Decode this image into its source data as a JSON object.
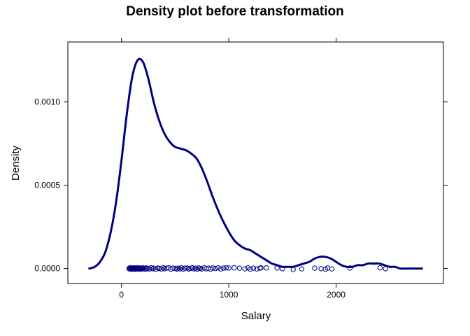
{
  "chart_data": {
    "type": "density",
    "title": "Density plot before transformation",
    "xlabel": "Salary",
    "ylabel": "Density",
    "xlim": [
      -500,
      3000
    ],
    "ylim": [
      -9e-05,
      0.00136
    ],
    "grid": false,
    "x_ticks": [
      {
        "value": 0,
        "label": "0"
      },
      {
        "value": 1000,
        "label": "1000"
      },
      {
        "value": 2000,
        "label": "2000"
      }
    ],
    "y_ticks": [
      {
        "value": 0,
        "label": "0.0000"
      },
      {
        "value": 0.0005,
        "label": "0.0005"
      },
      {
        "value": 0.001,
        "label": "0.0010"
      }
    ],
    "line_color": "#000080",
    "point_color": "#000080",
    "density_curve": {
      "x": [
        -300,
        -250,
        -200,
        -150,
        -100,
        -50,
        0,
        50,
        100,
        150,
        200,
        250,
        300,
        350,
        400,
        450,
        500,
        550,
        600,
        650,
        700,
        750,
        800,
        850,
        900,
        950,
        1000,
        1050,
        1100,
        1150,
        1200,
        1250,
        1300,
        1350,
        1400,
        1450,
        1500,
        1550,
        1600,
        1650,
        1700,
        1750,
        1800,
        1850,
        1900,
        1950,
        2000,
        2050,
        2100,
        2150,
        2200,
        2250,
        2300,
        2350,
        2400,
        2450,
        2500,
        2550,
        2600,
        2700,
        2800
      ],
      "y": [
        0.0,
        1e-05,
        4e-05,
        0.0001,
        0.00022,
        0.0004,
        0.00065,
        0.00093,
        0.00115,
        0.00125,
        0.00124,
        0.00114,
        0.001,
        0.00089,
        0.00081,
        0.00076,
        0.00073,
        0.00072,
        0.00071,
        0.00069,
        0.00066,
        0.0006,
        0.00052,
        0.00043,
        0.00035,
        0.00028,
        0.00022,
        0.00017,
        0.00014,
        0.00012,
        0.00011,
        9e-05,
        7e-05,
        5e-05,
        3e-05,
        2e-05,
        1e-05,
        1e-05,
        1e-05,
        2e-05,
        3e-05,
        4e-05,
        6e-05,
        7e-05,
        7e-05,
        6e-05,
        4e-05,
        2e-05,
        1e-05,
        1e-05,
        2e-05,
        2e-05,
        3e-05,
        3e-05,
        3e-05,
        2e-05,
        1e-05,
        1e-05,
        0.0,
        0.0,
        0.0
      ]
    },
    "rug_points": [
      {
        "x": 70,
        "y": 0.0
      },
      {
        "x": 75,
        "y": -3e-06
      },
      {
        "x": 80,
        "y": 4e-06
      },
      {
        "x": 85,
        "y": -2e-06
      },
      {
        "x": 90,
        "y": 2e-06
      },
      {
        "x": 95,
        "y": -4e-06
      },
      {
        "x": 100,
        "y": 3e-06
      },
      {
        "x": 105,
        "y": 0.0
      },
      {
        "x": 110,
        "y": -3e-06
      },
      {
        "x": 115,
        "y": 4e-06
      },
      {
        "x": 120,
        "y": -2e-06
      },
      {
        "x": 125,
        "y": 2e-06
      },
      {
        "x": 130,
        "y": -4e-06
      },
      {
        "x": 135,
        "y": 3e-06
      },
      {
        "x": 140,
        "y": 0.0
      },
      {
        "x": 145,
        "y": -3e-06
      },
      {
        "x": 150,
        "y": 4e-06
      },
      {
        "x": 155,
        "y": -2e-06
      },
      {
        "x": 160,
        "y": 2e-06
      },
      {
        "x": 170,
        "y": -4e-06
      },
      {
        "x": 175,
        "y": 3e-06
      },
      {
        "x": 180,
        "y": 0.0
      },
      {
        "x": 190,
        "y": -3e-06
      },
      {
        "x": 200,
        "y": 4e-06
      },
      {
        "x": 205,
        "y": -2e-06
      },
      {
        "x": 215,
        "y": 2e-06
      },
      {
        "x": 225,
        "y": -4e-06
      },
      {
        "x": 235,
        "y": 3e-06
      },
      {
        "x": 245,
        "y": 0.0
      },
      {
        "x": 260,
        "y": -3e-06
      },
      {
        "x": 275,
        "y": 4e-06
      },
      {
        "x": 290,
        "y": -2e-06
      },
      {
        "x": 300,
        "y": 2e-06
      },
      {
        "x": 320,
        "y": -4e-06
      },
      {
        "x": 340,
        "y": 3e-06
      },
      {
        "x": 350,
        "y": 0.0
      },
      {
        "x": 370,
        "y": -3e-06
      },
      {
        "x": 390,
        "y": 4e-06
      },
      {
        "x": 400,
        "y": -2e-06
      },
      {
        "x": 420,
        "y": 2e-06
      },
      {
        "x": 440,
        "y": 4e-06
      },
      {
        "x": 460,
        "y": -4e-06
      },
      {
        "x": 480,
        "y": 3e-06
      },
      {
        "x": 500,
        "y": 0.0
      },
      {
        "x": 515,
        "y": -3e-06
      },
      {
        "x": 530,
        "y": 2e-06
      },
      {
        "x": 545,
        "y": -2e-06
      },
      {
        "x": 560,
        "y": 4e-06
      },
      {
        "x": 575,
        "y": -4e-06
      },
      {
        "x": 590,
        "y": 2e-06
      },
      {
        "x": 610,
        "y": 3e-06
      },
      {
        "x": 625,
        "y": -3e-06
      },
      {
        "x": 640,
        "y": 0.0
      },
      {
        "x": 660,
        "y": 4e-06
      },
      {
        "x": 675,
        "y": -2e-06
      },
      {
        "x": 690,
        "y": 2e-06
      },
      {
        "x": 705,
        "y": -4e-06
      },
      {
        "x": 720,
        "y": 3e-06
      },
      {
        "x": 735,
        "y": 0.0
      },
      {
        "x": 750,
        "y": -3e-06
      },
      {
        "x": 770,
        "y": 4e-06
      },
      {
        "x": 790,
        "y": -2e-06
      },
      {
        "x": 810,
        "y": 2e-06
      },
      {
        "x": 830,
        "y": -4e-06
      },
      {
        "x": 850,
        "y": 3e-06
      },
      {
        "x": 875,
        "y": 0.0
      },
      {
        "x": 900,
        "y": 4e-06
      },
      {
        "x": 925,
        "y": -3e-06
      },
      {
        "x": 950,
        "y": 2e-06
      },
      {
        "x": 975,
        "y": 4e-06
      },
      {
        "x": 1000,
        "y": 3e-06
      },
      {
        "x": 1050,
        "y": 4e-06
      },
      {
        "x": 1100,
        "y": 2e-06
      },
      {
        "x": 1150,
        "y": -2e-06
      },
      {
        "x": 1180,
        "y": 4e-06
      },
      {
        "x": 1200,
        "y": -4e-06
      },
      {
        "x": 1230,
        "y": 2e-06
      },
      {
        "x": 1260,
        "y": -3e-06
      },
      {
        "x": 1290,
        "y": 2e-06
      },
      {
        "x": 1300,
        "y": 4e-06
      },
      {
        "x": 1350,
        "y": 4e-06
      },
      {
        "x": 1450,
        "y": 3e-06
      },
      {
        "x": 1500,
        "y": -1e-06
      },
      {
        "x": 1600,
        "y": -6e-06
      },
      {
        "x": 1680,
        "y": -2e-06
      },
      {
        "x": 1800,
        "y": 2e-06
      },
      {
        "x": 1860,
        "y": -1e-06
      },
      {
        "x": 1900,
        "y": -4e-06
      },
      {
        "x": 1920,
        "y": 3e-06
      },
      {
        "x": 1960,
        "y": -2e-06
      },
      {
        "x": 2130,
        "y": 3e-06
      },
      {
        "x": 2410,
        "y": 4e-06
      },
      {
        "x": 2460,
        "y": -1e-06
      }
    ]
  }
}
